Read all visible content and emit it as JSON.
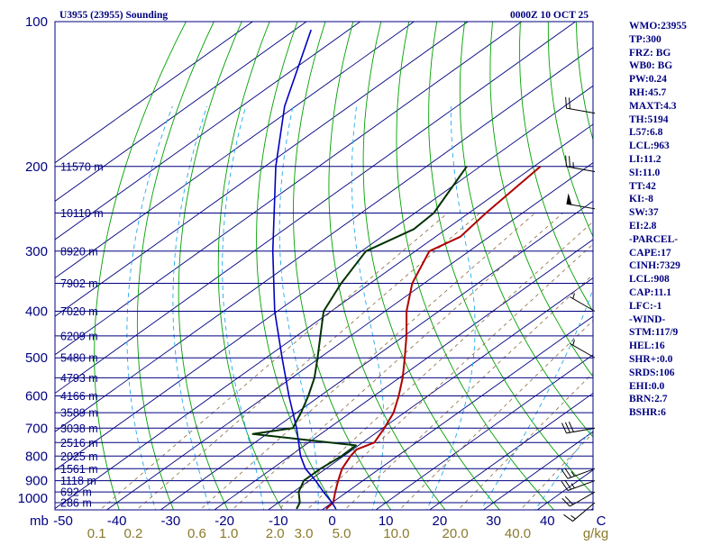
{
  "header": {
    "station": "U3955 (23955) Sounding",
    "time": "0000Z 10 OCT 25"
  },
  "colors": {
    "frame": "#000080",
    "isobar": "#000080",
    "isotherm": "#000080",
    "dry_adiabat": "#00a000",
    "moist_adiabat": "#22aaee",
    "mixing_ratio": "#8a6a3a",
    "temperature": "#b00000",
    "dewpoint": "#003300",
    "parcel": "#0000c0",
    "wind": "#000000",
    "mixing_labels": "#8a7a2a"
  },
  "chart_data": {
    "type": "skew-t",
    "title": "U3955 (23955) Sounding",
    "xlabel": "C",
    "ylabel": "mb",
    "x_unit": "C",
    "mixing_unit": "g/kg",
    "xlim": [
      -50,
      50
    ],
    "ylim": [
      1050,
      100
    ],
    "pressure_ticks": [
      "100",
      "200",
      "300",
      "400",
      "500",
      "600",
      "700",
      "800",
      "900",
      "1000"
    ],
    "pressure_levels_mb": [
      100,
      200,
      300,
      400,
      500,
      600,
      700,
      800,
      900,
      1000
    ],
    "temp_ticks": [
      "-50",
      "-40",
      "-30",
      "-20",
      "-10",
      "0",
      "10",
      "20",
      "30",
      "40",
      "C"
    ],
    "temp_tick_values": [
      -50,
      -40,
      -30,
      -20,
      -10,
      0,
      10,
      20,
      30,
      40,
      50
    ],
    "mixing_ratio_labels": [
      "0.1",
      "0.2",
      "0.6",
      "1.0",
      "2.0",
      "3.0",
      "5.0",
      "10.0",
      "20.0",
      "40.0",
      "g/kg"
    ],
    "mixing_ratio_values": [
      0.1,
      0.2,
      0.6,
      1.0,
      2.0,
      3.0,
      5.0,
      10.0,
      20.0,
      40.0
    ],
    "heights": [
      {
        "p": 200,
        "label": "11570 m"
      },
      {
        "p": 250,
        "label": "10110 m"
      },
      {
        "p": 300,
        "label": "8920 m"
      },
      {
        "p": 350,
        "label": "7902 m"
      },
      {
        "p": 400,
        "label": "7020 m"
      },
      {
        "p": 450,
        "label": "6209 m"
      },
      {
        "p": 500,
        "label": "5480 m"
      },
      {
        "p": 550,
        "label": "4793 m"
      },
      {
        "p": 600,
        "label": "4166 m"
      },
      {
        "p": 650,
        "label": "3589 m"
      },
      {
        "p": 700,
        "label": "3038 m"
      },
      {
        "p": 750,
        "label": "2516 m"
      },
      {
        "p": 800,
        "label": "2025 m"
      },
      {
        "p": 850,
        "label": "1561 m"
      },
      {
        "p": 900,
        "label": "1118 m"
      },
      {
        "p": 950,
        "label": "692 m"
      },
      {
        "p": 1000,
        "label": "286 m"
      }
    ],
    "series": [
      {
        "name": "temperature",
        "points": [
          {
            "p": 1030,
            "t": 0.5
          },
          {
            "p": 1000,
            "t": 0.2
          },
          {
            "p": 950,
            "t": -2.2
          },
          {
            "p": 900,
            "t": -4.6
          },
          {
            "p": 850,
            "t": -7.0
          },
          {
            "p": 800,
            "t": -8.7
          },
          {
            "p": 775,
            "t": -9.3
          },
          {
            "p": 750,
            "t": -7.8
          },
          {
            "p": 700,
            "t": -9.7
          },
          {
            "p": 650,
            "t": -12.0
          },
          {
            "p": 600,
            "t": -15.4
          },
          {
            "p": 550,
            "t": -19.4
          },
          {
            "p": 500,
            "t": -24.2
          },
          {
            "p": 450,
            "t": -29.6
          },
          {
            "p": 400,
            "t": -36.0
          },
          {
            "p": 350,
            "t": -42.2
          },
          {
            "p": 300,
            "t": -47.4
          },
          {
            "p": 280,
            "t": -45.4
          },
          {
            "p": 250,
            "t": -46.8
          },
          {
            "p": 200,
            "t": -48.8
          }
        ]
      },
      {
        "name": "dewpoint",
        "points": [
          {
            "p": 1030,
            "t": -5.0
          },
          {
            "p": 1000,
            "t": -6.0
          },
          {
            "p": 950,
            "t": -9.0
          },
          {
            "p": 900,
            "t": -11.0
          },
          {
            "p": 850,
            "t": -11.0
          },
          {
            "p": 800,
            "t": -10.4
          },
          {
            "p": 760,
            "t": -10.5
          },
          {
            "p": 720,
            "t": -32.6
          },
          {
            "p": 700,
            "t": -26.7
          },
          {
            "p": 650,
            "t": -29.2
          },
          {
            "p": 600,
            "t": -32.2
          },
          {
            "p": 550,
            "t": -35.8
          },
          {
            "p": 500,
            "t": -40.4
          },
          {
            "p": 450,
            "t": -45.6
          },
          {
            "p": 400,
            "t": -51.4
          },
          {
            "p": 350,
            "t": -55.4
          },
          {
            "p": 300,
            "t": -59.2
          },
          {
            "p": 270,
            "t": -56.0
          },
          {
            "p": 250,
            "t": -56.5
          },
          {
            "p": 200,
            "t": -62.5
          }
        ]
      },
      {
        "name": "parcel",
        "points": [
          {
            "p": 1030,
            "t": 2.3
          },
          {
            "p": 1000,
            "t": 0.0
          },
          {
            "p": 950,
            "t": -4.4
          },
          {
            "p": 900,
            "t": -8.8
          },
          {
            "p": 850,
            "t": -13.8
          },
          {
            "p": 800,
            "t": -18.0
          },
          {
            "p": 700,
            "t": -26.0
          },
          {
            "p": 600,
            "t": -35.8
          },
          {
            "p": 500,
            "t": -47.0
          },
          {
            "p": 400,
            "t": -60.5
          },
          {
            "p": 300,
            "t": -76.5
          },
          {
            "p": 200,
            "t": -98.0
          },
          {
            "p": 150,
            "t": -112.0
          },
          {
            "p": 104,
            "t": -127.0
          }
        ]
      }
    ],
    "wind_barbs": [
      {
        "p": 155,
        "dir": 280,
        "kt": 20
      },
      {
        "p": 205,
        "dir": 280,
        "kt": 25
      },
      {
        "p": 245,
        "dir": 280,
        "kt": 50
      },
      {
        "p": 400,
        "dir": 300,
        "kt": 5
      },
      {
        "p": 500,
        "dir": 300,
        "kt": 5
      },
      {
        "p": 700,
        "dir": 260,
        "kt": 30
      },
      {
        "p": 850,
        "dir": 250,
        "kt": 25
      },
      {
        "p": 900,
        "dir": 250,
        "kt": 25
      },
      {
        "p": 950,
        "dir": 240,
        "kt": 20
      },
      {
        "p": 1000,
        "dir": 230,
        "kt": 15
      }
    ]
  },
  "indices": [
    "WMO:23955",
    "TP:300",
    "FRZ: BG",
    "WB0: BG",
    "PW:0.24",
    "RH:45.7",
    "MAXT:4.3",
    "TH:5194",
    "L57:6.8",
    "LCL:963",
    "LI:11.2",
    "SI:11.0",
    "TT:42",
    "KI:-8",
    "SW:37",
    "EI:2.8",
    "-PARCEL-",
    "CAPE:17",
    "CINH:7329",
    "LCL:908",
    "CAP:11.1",
    "LFC:-1",
    "-WIND-",
    "STM:117/9",
    "HEL:16",
    "SHR+:0.0",
    "SRDS:106",
    "EHI:0.0",
    "BRN:2.7",
    "BSHR:6"
  ]
}
